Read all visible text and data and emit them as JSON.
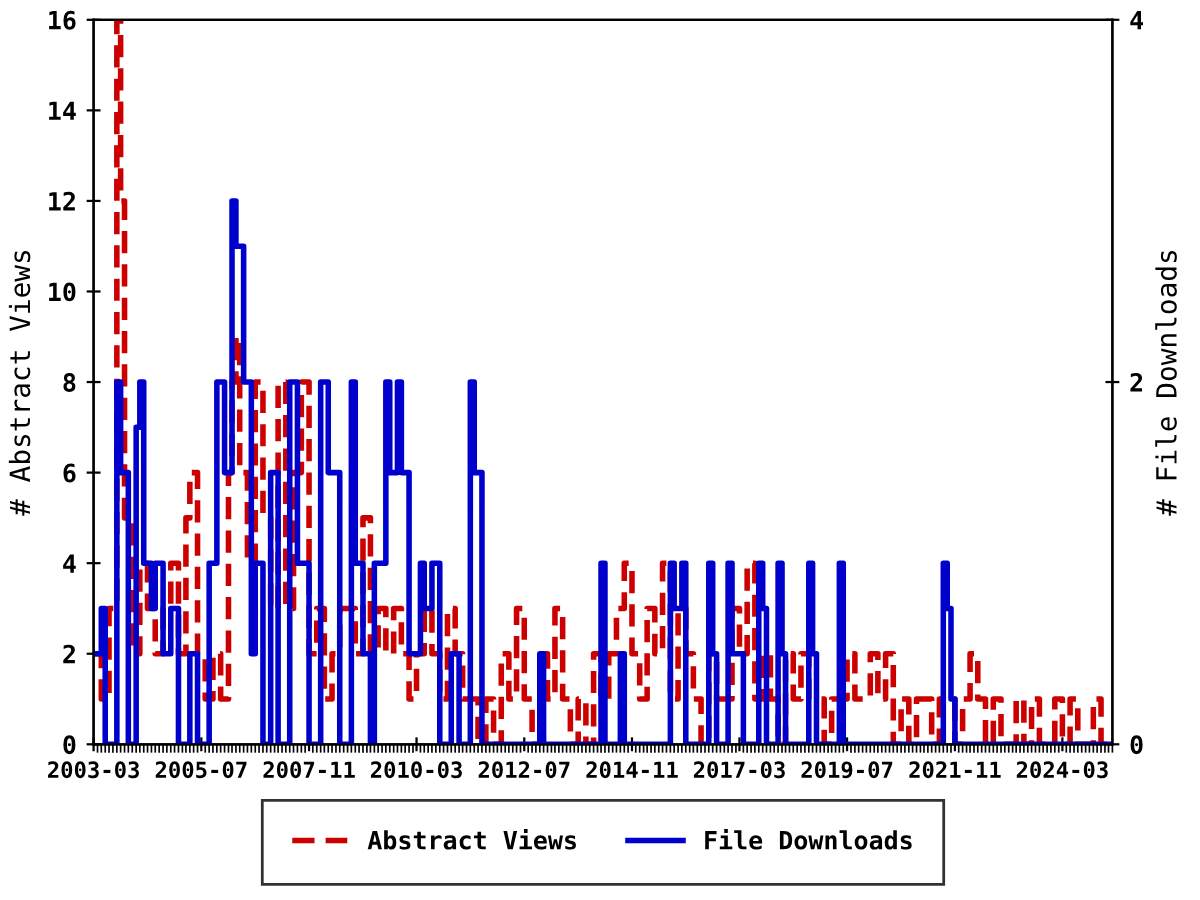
{
  "chart_data": {
    "type": "step",
    "ylabel": "# Abstract Views",
    "y2label": "# File Downloads",
    "xlim": [
      "2003-03",
      "2025-04"
    ],
    "xticks": [
      {
        "value": "2003-03",
        "label": "2003-03"
      },
      {
        "value": "2005-07",
        "label": "2005-07"
      },
      {
        "value": "2007-11",
        "label": "2007-11"
      },
      {
        "value": "2010-03",
        "label": "2010-03"
      },
      {
        "value": "2012-07",
        "label": "2012-07"
      },
      {
        "value": "2014-11",
        "label": "2014-11"
      },
      {
        "value": "2017-03",
        "label": "2017-03"
      },
      {
        "value": "2019-07",
        "label": "2019-07"
      },
      {
        "value": "2021-11",
        "label": "2021-11"
      },
      {
        "value": "2024-03",
        "label": "2024-03"
      }
    ],
    "ylim": [
      0,
      16
    ],
    "yticks": [
      0,
      2,
      4,
      6,
      8,
      10,
      12,
      14,
      16
    ],
    "y2lim": [
      0,
      4
    ],
    "y2ticks": [
      0,
      2,
      4
    ],
    "grid": false,
    "legend": "bottom",
    "series": [
      {
        "name": "Abstract Views",
        "color": "#cc0000",
        "line_style": "dashed",
        "x": [
          "2003-03",
          "2003-05",
          "2003-07",
          "2003-09",
          "2003-10",
          "2003-11",
          "2004-01",
          "2004-03",
          "2004-05",
          "2004-07",
          "2004-09",
          "2004-11",
          "2005-01",
          "2005-03",
          "2005-04",
          "2005-06",
          "2005-08",
          "2005-10",
          "2005-12",
          "2006-02",
          "2006-03",
          "2006-04",
          "2006-05",
          "2006-07",
          "2006-09",
          "2006-11",
          "2007-01",
          "2007-03",
          "2007-05",
          "2007-07",
          "2007-09",
          "2007-11",
          "2008-01",
          "2008-03",
          "2008-05",
          "2008-07",
          "2008-09",
          "2008-11",
          "2009-01",
          "2009-03",
          "2009-05",
          "2009-07",
          "2009-09",
          "2009-11",
          "2010-01",
          "2010-03",
          "2010-05",
          "2010-07",
          "2010-09",
          "2010-11",
          "2011-01",
          "2011-03",
          "2011-05",
          "2011-07",
          "2011-09",
          "2011-11",
          "2012-01",
          "2012-03",
          "2012-05",
          "2012-07",
          "2012-09",
          "2012-11",
          "2013-01",
          "2013-03",
          "2013-05",
          "2013-07",
          "2013-09",
          "2013-11",
          "2014-01",
          "2014-03",
          "2014-05",
          "2014-07",
          "2014-09",
          "2014-11",
          "2015-01",
          "2015-03",
          "2015-05",
          "2015-07",
          "2015-09",
          "2015-11",
          "2016-01",
          "2016-03",
          "2016-05",
          "2016-07",
          "2016-09",
          "2016-11",
          "2017-01",
          "2017-03",
          "2017-05",
          "2017-07",
          "2017-09",
          "2017-11",
          "2018-01",
          "2018-03",
          "2018-05",
          "2018-07",
          "2018-09",
          "2018-11",
          "2019-01",
          "2019-03",
          "2019-05",
          "2019-07",
          "2019-09",
          "2019-11",
          "2020-01",
          "2020-03",
          "2020-05",
          "2020-07",
          "2020-09",
          "2020-11",
          "2021-01",
          "2021-03",
          "2021-05",
          "2021-07",
          "2021-09",
          "2021-11",
          "2022-01",
          "2022-03",
          "2022-05",
          "2022-07",
          "2022-09",
          "2022-11",
          "2023-01",
          "2023-03",
          "2023-05",
          "2023-07",
          "2023-09",
          "2023-11",
          "2024-01",
          "2024-03",
          "2024-05",
          "2024-07",
          "2024-09",
          "2024-11",
          "2025-01",
          "2025-03"
        ],
        "values": [
          2,
          1,
          3,
          16,
          12,
          5,
          2,
          4,
          3,
          2,
          3,
          4,
          2,
          5,
          6,
          2,
          1,
          2,
          1,
          6,
          8,
          9,
          6,
          4,
          8,
          5,
          3,
          8,
          3,
          6,
          8,
          2,
          3,
          1,
          2,
          3,
          3,
          2,
          5,
          2,
          3,
          2,
          3,
          2,
          1,
          2,
          3,
          2,
          1,
          3,
          2,
          1,
          1,
          0,
          1,
          0,
          2,
          1,
          3,
          1,
          0,
          2,
          1,
          3,
          1,
          0,
          1,
          0,
          2,
          1,
          2,
          3,
          4,
          2,
          1,
          3,
          2,
          4,
          1,
          3,
          2,
          1,
          0,
          2,
          1,
          1,
          3,
          2,
          4,
          1,
          2,
          1,
          0,
          2,
          1,
          2,
          1,
          1,
          0,
          1,
          1,
          2,
          1,
          1,
          2,
          1,
          2,
          0,
          1,
          0,
          1,
          1,
          0,
          1,
          1,
          0,
          1,
          2,
          1,
          0,
          1,
          0,
          0,
          1,
          0,
          1,
          0,
          0,
          1,
          0,
          1,
          0,
          0,
          1,
          0,
          0
        ]
      },
      {
        "name": "File Downloads",
        "color": "#0000cc",
        "line_style": "solid",
        "axis": "y2",
        "x": [
          "2003-03",
          "2003-05",
          "2003-06",
          "2003-09",
          "2003-10",
          "2003-12",
          "2004-02",
          "2004-03",
          "2004-04",
          "2004-06",
          "2004-07",
          "2004-09",
          "2004-11",
          "2005-01",
          "2005-04",
          "2005-06",
          "2005-09",
          "2005-11",
          "2006-01",
          "2006-03",
          "2006-04",
          "2006-06",
          "2006-08",
          "2006-09",
          "2006-11",
          "2007-01",
          "2007-03",
          "2007-06",
          "2007-08",
          "2007-11",
          "2008-02",
          "2008-04",
          "2008-07",
          "2008-10",
          "2008-11",
          "2009-01",
          "2009-03",
          "2009-04",
          "2009-07",
          "2009-08",
          "2009-10",
          "2009-11",
          "2010-01",
          "2010-04",
          "2010-05",
          "2010-07",
          "2010-09",
          "2010-12",
          "2011-02",
          "2011-05",
          "2011-06",
          "2011-08",
          "2012-11",
          "2012-12",
          "2014-03",
          "2014-04",
          "2014-08",
          "2014-09",
          "2015-09",
          "2015-10",
          "2015-12",
          "2016-01",
          "2016-07",
          "2016-08",
          "2016-09",
          "2016-12",
          "2017-01",
          "2017-04",
          "2017-08",
          "2017-09",
          "2017-10",
          "2018-01",
          "2018-02",
          "2018-03",
          "2018-09",
          "2018-10",
          "2018-11",
          "2019-05",
          "2019-06",
          "2021-08",
          "2021-09",
          "2021-10",
          "2021-11",
          "2025-04"
        ],
        "values": [
          0.5,
          0.75,
          0,
          2,
          1.5,
          0,
          1.75,
          2,
          1,
          0.75,
          1,
          0.5,
          0.75,
          0,
          0.5,
          0,
          1,
          2,
          1.5,
          3,
          2.75,
          2,
          0.5,
          1,
          0,
          1.5,
          0,
          2,
          1,
          0,
          2,
          1.5,
          0,
          2,
          1,
          0.5,
          0,
          1,
          2,
          1.5,
          2,
          1.5,
          0.5,
          1,
          0.75,
          1,
          0,
          0.5,
          0,
          2,
          1.5,
          0,
          0.5,
          0,
          1,
          0,
          0.5,
          0,
          1,
          0.75,
          1,
          0,
          1,
          0.5,
          0,
          1,
          0.5,
          0,
          1,
          0.75,
          0,
          1,
          0.5,
          0,
          1,
          0.5,
          0,
          1,
          0,
          1,
          0.75,
          0.25,
          0,
          0
        ]
      }
    ]
  }
}
